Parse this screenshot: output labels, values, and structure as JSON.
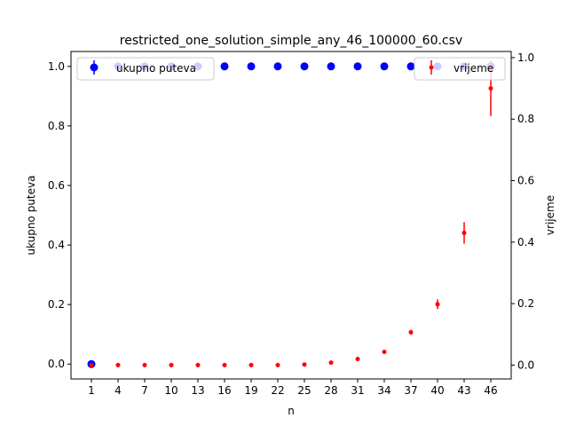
{
  "chart_data": {
    "type": "scatter",
    "title": "restricted_one_solution_simple_any_46_100000_60.csv",
    "xlabel": "n",
    "ylabel_left": "ukupno puteva",
    "ylabel_right": "vrijeme",
    "categories": [
      "1",
      "4",
      "7",
      "10",
      "13",
      "16",
      "19",
      "22",
      "25",
      "28",
      "31",
      "34",
      "37",
      "40",
      "43",
      "46"
    ],
    "ylim_left": [
      -0.05,
      1.05
    ],
    "ylim_right": [
      -0.045,
      1.02
    ],
    "yticks_left": [
      "0.0",
      "0.2",
      "0.4",
      "0.6",
      "0.8",
      "1.0"
    ],
    "yticks_right": [
      "0.0",
      "0.2",
      "0.4",
      "0.6",
      "0.8",
      "1.0"
    ],
    "grid": false,
    "series": [
      {
        "name": "ukupno puteva",
        "axis": "left",
        "color": "#0000ff",
        "marker": "large-circle",
        "values": [
          0,
          1,
          1,
          1,
          1,
          1,
          1,
          1,
          1,
          1,
          1,
          1,
          1,
          1,
          1,
          1
        ],
        "errors": [
          0,
          0,
          0,
          0,
          0,
          0,
          0,
          0,
          0,
          0,
          0,
          0,
          0,
          0,
          0,
          0
        ],
        "legend_position": "top-left"
      },
      {
        "name": "vrijeme",
        "axis": "right",
        "color": "#ff0000",
        "marker": "small-circle",
        "values": [
          0,
          0,
          0,
          0,
          0,
          0,
          0,
          0,
          0.002,
          0.008,
          0.02,
          0.043,
          0.107,
          0.198,
          0.43,
          0.9
        ],
        "errors": [
          0,
          0,
          0,
          0,
          0,
          0,
          0,
          0,
          0,
          0.002,
          0.002,
          0.003,
          0.008,
          0.016,
          0.035,
          0.09
        ],
        "legend_position": "top-right"
      }
    ]
  }
}
